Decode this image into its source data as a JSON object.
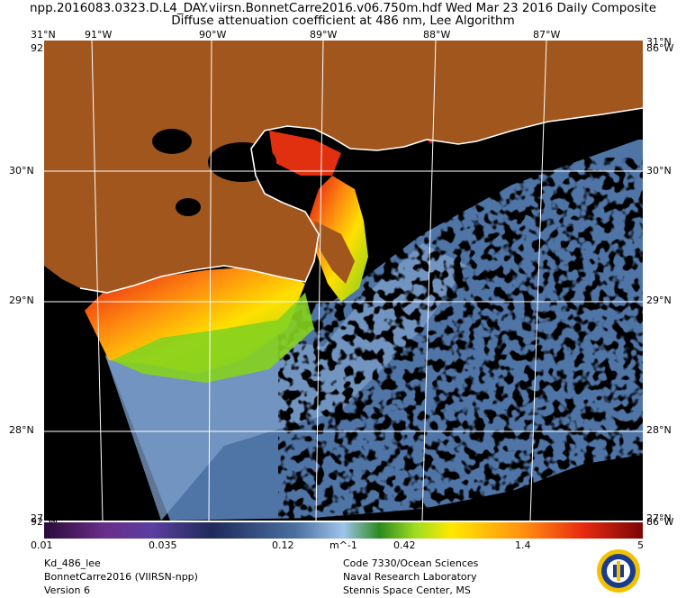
{
  "header": {
    "line1": "npp.2016083.0323.D.L4_DAY.viirsn.BonnetCarre2016.v06.750m.hdf   Wed Mar 23 2016 Daily Composite",
    "line2": "Diffuse attenuation coefficient at 486 nm, Lee Algorithm"
  },
  "map": {
    "lon_labels": [
      "91°W",
      "90°W",
      "89°W",
      "88°W",
      "87°W"
    ],
    "lat_labels": [
      "30°N",
      "29°N",
      "28°N"
    ],
    "corner_top_left": "31°N",
    "corner_top_right": "31°N",
    "corner_left_top": "92°W",
    "corner_right_top": "86°W",
    "corner_left_bottom": "92°W",
    "corner_right_bottom": "86°W",
    "corner_bottom_left": "27°N",
    "corner_bottom_right": "27°N",
    "colors": {
      "land": "#a0561d",
      "nodata": "#000000",
      "clear_water": "#4a6fa0",
      "plume_green": "#7fcf1f",
      "plume_yellow": "#ffe000",
      "plume_orange": "#ff7a10",
      "plume_red": "#e01010",
      "grid": "#ffffff"
    }
  },
  "colorbar": {
    "ticks": [
      "0.01",
      "0.035",
      "0.12",
      "0.42",
      "1.4",
      "5"
    ],
    "unit": "m^-1",
    "scale": "log",
    "range": [
      0.01,
      5
    ]
  },
  "footer": {
    "left": [
      "Kd_486_lee",
      "BonnetCarre2016 (VIIRSN-npp)",
      "Version 6"
    ],
    "right": [
      "Code 7330/Ocean Sciences",
      "Naval Research Laboratory",
      "Stennis Space Center, MS"
    ]
  }
}
